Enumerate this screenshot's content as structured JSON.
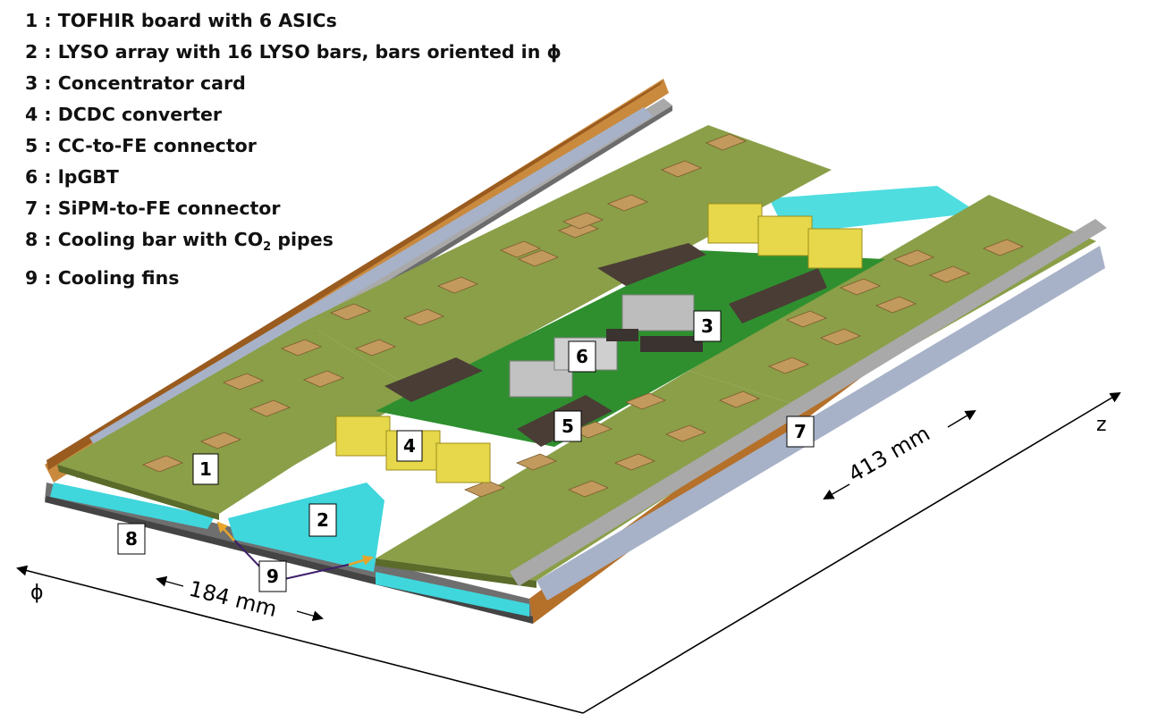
{
  "legend": [
    {
      "num": "1",
      "sep": " : ",
      "text": "TOFHIR board with 6 ASICs"
    },
    {
      "num": "2",
      "sep": " : ",
      "text": "LYSO array with 16 LYSO bars, bars oriented in ϕ"
    },
    {
      "num": "3",
      "sep": " : ",
      "text": "Concentrator card"
    },
    {
      "num": "4",
      "sep": " : ",
      "text": "DCDC converter"
    },
    {
      "num": "5",
      "sep": " : ",
      "text": "CC-to-FE connector"
    },
    {
      "num": "6",
      "sep": " : ",
      "text": "lpGBT"
    },
    {
      "num": "7",
      "sep": " : ",
      "text": "SiPM-to-FE connector"
    },
    {
      "num": "8",
      "sep": " : ",
      "text": "Cooling bar with CO",
      "sub": "2",
      "after": " pipes"
    },
    {
      "num": "9",
      "sep": " : ",
      "text": "Cooling fins"
    }
  ],
  "callouts": {
    "c1": "1",
    "c2": "2",
    "c3": "3",
    "c4": "4",
    "c5": "5",
    "c6": "6",
    "c7": "7",
    "c8": "8",
    "c9": "9"
  },
  "dimensions": {
    "width": "184 mm",
    "length": "413 mm"
  },
  "axes": {
    "phi": "ϕ",
    "z": "z"
  },
  "colors": {
    "board_green": "#8a9f48",
    "cc_green": "#2f8f2f",
    "lyso_cyan": "#3fd6dc",
    "frame_bronze": "#b5702a",
    "asic_tan": "#c39a5e",
    "dcdc_yellow": "#e6d84a",
    "connector_dark": "#4a3d35",
    "rail_grey": "#9a9a9a",
    "fin_arrow_yellow": "#e7a52c",
    "fin_arrow_purple": "#3d1f6a"
  }
}
